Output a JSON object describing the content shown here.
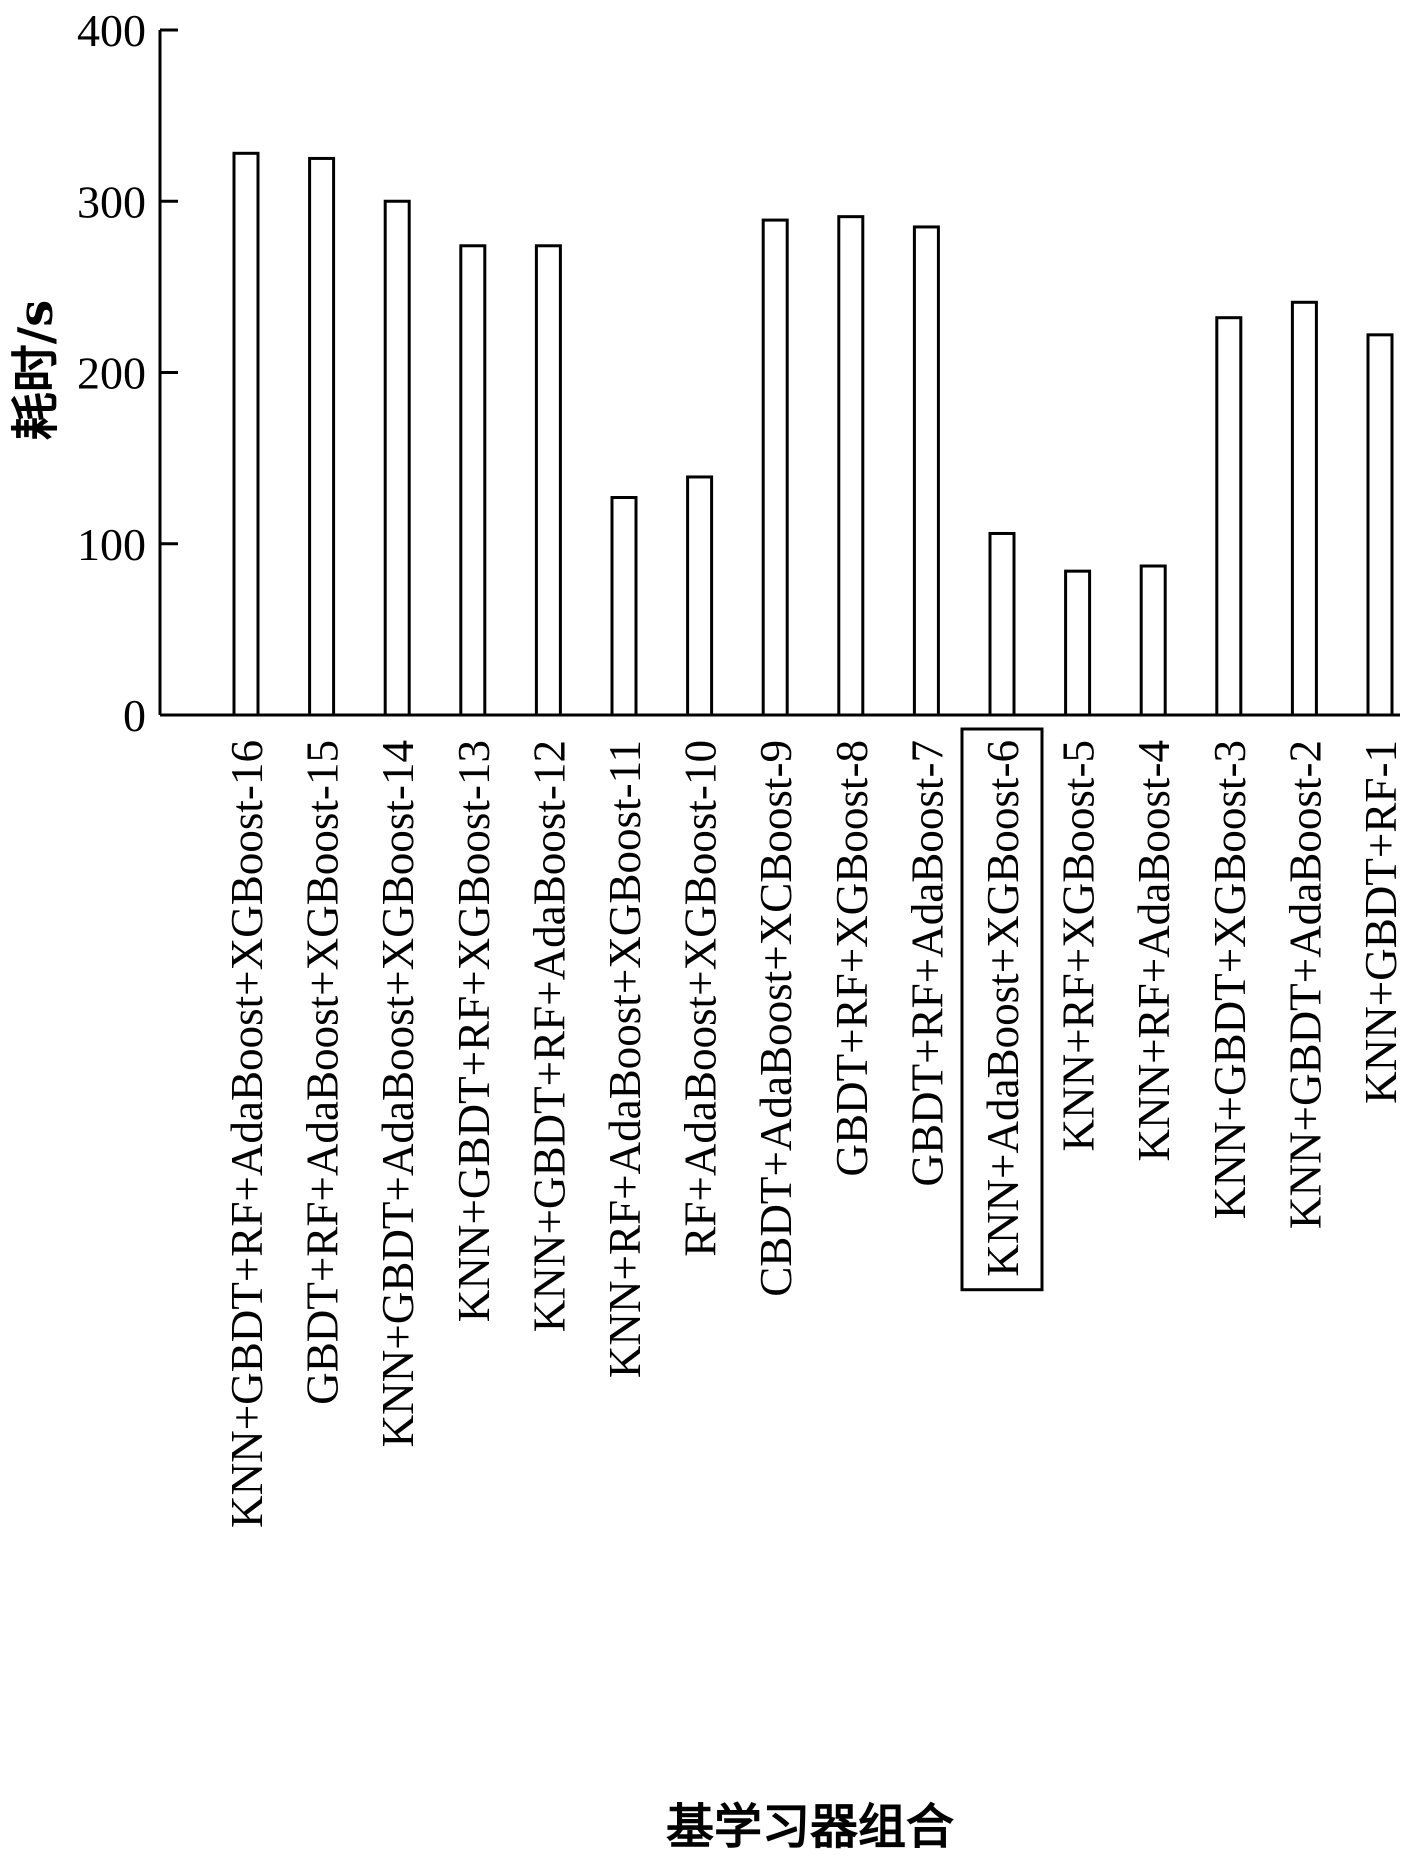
{
  "chart_data": {
    "type": "bar",
    "categories": [
      "KNN+GBDT+RF+AdaBoost+XGBoost-16",
      "GBDT+RF+AdaBoost+XGBoost-15",
      "KNN+GBDT+AdaBoost+XGBoost-14",
      "KNN+GBDT+RF+XGBoost-13",
      "KNN+GBDT+RF+AdaBoost-12",
      "KNN+RF+AdaBoost+XGBoost-11",
      "RF+AdaBoost+XGBoost-10",
      "CBDT+AdaBoost+XCBoost-9",
      "GBDT+RF+XGBoost-8",
      "GBDT+RF+AdaBoost-7",
      "KNN+AdaBoost+XGBoost-6",
      "KNN+RF+XGBoost-5",
      "KNN+RF+AdaBoost-4",
      "KNN+GBDT+XGBoost-3",
      "KNN+GBDT+AdaBoost-2",
      "KNN+GBDT+RF-1"
    ],
    "values": [
      328,
      325,
      300,
      274,
      274,
      127,
      139,
      289,
      291,
      285,
      106,
      84,
      87,
      232,
      241,
      222
    ],
    "highlighted_index": 10,
    "ylim": [
      0,
      400
    ],
    "yticks": [
      0,
      100,
      200,
      300,
      400
    ],
    "ylabel": "耗时/s",
    "xlabel": "基学习器组合",
    "grid": false,
    "colors": {
      "bar_fill": "#ffffff",
      "stroke": "#000000"
    }
  }
}
